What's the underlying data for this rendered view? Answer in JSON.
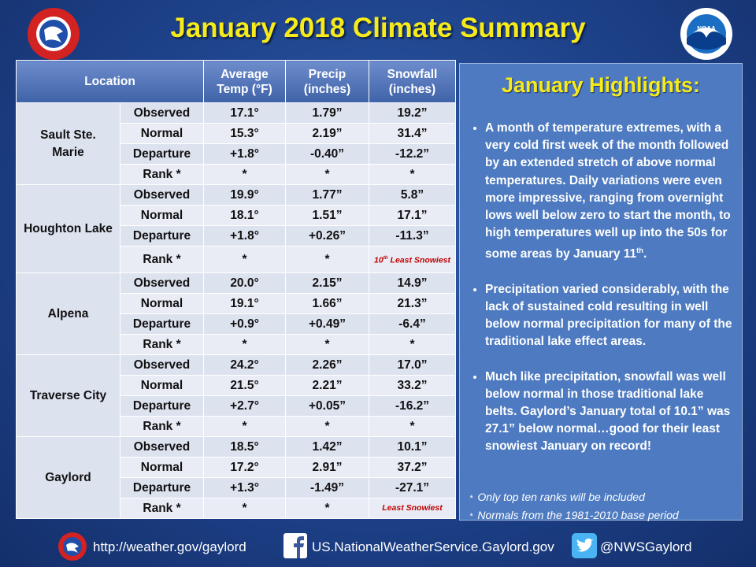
{
  "header": {
    "title": "January 2018 Climate Summary",
    "noaa": "NOAA"
  },
  "table": {
    "columns": [
      "Location",
      "Average Temp (°F)",
      "Precip (inches)",
      "Snowfall (inches)"
    ],
    "groups": [
      {
        "location": "Sault Ste. Marie",
        "rows": [
          {
            "label": "Observed",
            "cells": [
              "17.1°",
              "1.79”",
              "19.2”"
            ]
          },
          {
            "label": "Normal",
            "cells": [
              "15.3°",
              "2.19”",
              "31.4”"
            ]
          },
          {
            "label": "Departure",
            "cells": [
              "+1.8°",
              "-0.40”",
              "-12.2”"
            ]
          },
          {
            "label": "Rank *",
            "cells": [
              "*",
              "*",
              "*"
            ]
          }
        ]
      },
      {
        "location": "Houghton Lake",
        "rows": [
          {
            "label": "Observed",
            "cells": [
              "19.9°",
              "1.77”",
              "5.8”"
            ]
          },
          {
            "label": "Normal",
            "cells": [
              "18.1°",
              "1.51”",
              "17.1”"
            ]
          },
          {
            "label": "Departure",
            "cells": [
              "+1.8°",
              "+0.26”",
              "-11.3”"
            ]
          },
          {
            "label": "Rank *",
            "cells": [
              "*",
              "*",
              {
                "text": "10",
                "sup": "th",
                "after": " Least Snowiest"
              }
            ]
          }
        ]
      },
      {
        "location": "Alpena",
        "rows": [
          {
            "label": "Observed",
            "cells": [
              "20.0°",
              "2.15”",
              "14.9”"
            ]
          },
          {
            "label": "Normal",
            "cells": [
              "19.1°",
              "1.66”",
              "21.3”"
            ]
          },
          {
            "label": "Departure",
            "cells": [
              "+0.9°",
              "+0.49”",
              "-6.4”"
            ]
          },
          {
            "label": "Rank *",
            "cells": [
              "*",
              "*",
              "*"
            ]
          }
        ]
      },
      {
        "location": "Traverse City",
        "rows": [
          {
            "label": "Observed",
            "cells": [
              "24.2°",
              "2.26”",
              "17.0”"
            ]
          },
          {
            "label": "Normal",
            "cells": [
              "21.5°",
              "2.21”",
              "33.2”"
            ]
          },
          {
            "label": "Departure",
            "cells": [
              "+2.7°",
              "+0.05”",
              "-16.2”"
            ]
          },
          {
            "label": "Rank *",
            "cells": [
              "*",
              "*",
              "*"
            ]
          }
        ]
      },
      {
        "location": "Gaylord",
        "rows": [
          {
            "label": "Observed",
            "cells": [
              "18.5°",
              "1.42”",
              "10.1”"
            ]
          },
          {
            "label": "Normal",
            "cells": [
              "17.2°",
              "2.91”",
              "37.2”"
            ]
          },
          {
            "label": "Departure",
            "cells": [
              "+1.3°",
              "-1.49”",
              "-27.1”"
            ]
          },
          {
            "label": "Rank *",
            "cells": [
              "*",
              "*",
              "Least Snowiest"
            ]
          }
        ]
      }
    ]
  },
  "highlights": {
    "title": "January Highlights:",
    "bullets": [
      {
        "text": "A month of temperature extremes, with a very cold first week of the month followed by an extended stretch of above normal temperatures.  Daily variations were even more impressive, ranging from overnight lows well below zero to start the month, to high temperatures well up into the 50s for some areas by January 11",
        "sup": "th",
        "after": "."
      },
      "Precipitation varied considerably, with the lack of sustained cold resulting in well below normal precipitation for many of the traditional lake effect areas.",
      "Much like precipitation, snowfall was well below normal in those traditional lake belts. Gaylord’s January total of 10.1” was 27.1” below normal…good for their least snowiest January on record!"
    ],
    "notes": [
      "Only top ten ranks will be included",
      "Normals from the 1981-2010 base period"
    ]
  },
  "footer": {
    "website": "http://weather.gov/gaylord",
    "facebook": "US.NationalWeatherService.Gaylord.gov",
    "twitter": "@NWSGaylord"
  }
}
